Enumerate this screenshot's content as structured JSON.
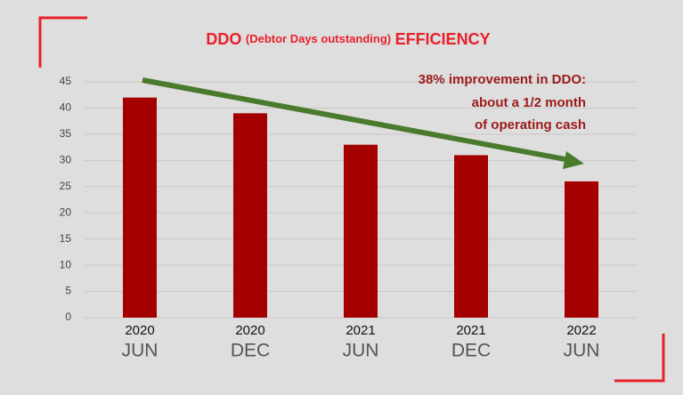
{
  "chart_data": {
    "type": "bar",
    "title": [
      "DDO",
      "(Debtor Days outstanding)",
      "EFFICIENCY"
    ],
    "annotation": [
      "38% improvement in DDO:",
      "about a 1/2 month",
      "of operating cash"
    ],
    "categories": [
      [
        "2020",
        "JUN"
      ],
      [
        "2020",
        "DEC"
      ],
      [
        "2021",
        "JUN"
      ],
      [
        "2021",
        "DEC"
      ],
      [
        "2022",
        "JUN"
      ]
    ],
    "values": [
      42,
      39,
      33,
      31,
      26
    ],
    "color": "#a50000",
    "ylim": [
      0,
      45
    ],
    "yticks": [
      0,
      5,
      10,
      15,
      20,
      25,
      30,
      35,
      40,
      45
    ],
    "grid": true
  }
}
